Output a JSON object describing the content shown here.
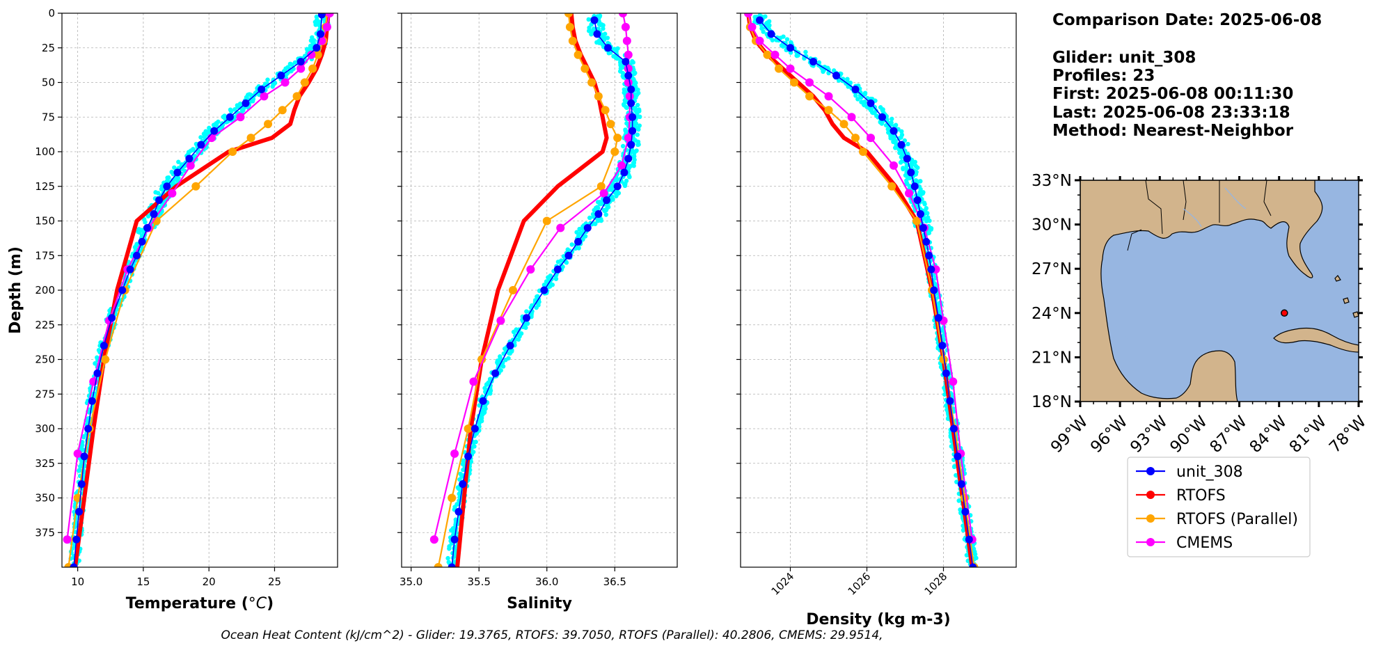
{
  "info": {
    "comparison_date": "Comparison Date: 2025-06-08",
    "glider": "Glider: unit_308",
    "profiles": "Profiles: 23",
    "first": "First: 2025-06-08 00:11:30",
    "last": "Last: 2025-06-08 23:33:18",
    "method": "Method: Nearest-Neighbor"
  },
  "footer": "Ocean Heat Content (kJ/cm^2) - Glider: 19.3765,  RTOFS: 39.7050,  RTOFS (Parallel): 40.2806,  CMEMS: 29.9514,",
  "colors": {
    "glider": "#0000ff",
    "glider_raw": "#00ffff",
    "rtofs": "#ff0000",
    "rtofs_parallel": "#ffa500",
    "cmems": "#ff00ff",
    "land": "#d2b48c",
    "ocean": "#97b6e1",
    "grid": "#b0b0b0"
  },
  "legend": {
    "entries": [
      {
        "label": "unit_308",
        "color": "#0000ff"
      },
      {
        "label": "RTOFS",
        "color": "#ff0000"
      },
      {
        "label": "RTOFS (Parallel)",
        "color": "#ffa500"
      },
      {
        "label": "CMEMS",
        "color": "#ff00ff"
      }
    ]
  },
  "chart_data": [
    {
      "type": "line",
      "xlabel": "Temperature (°C)",
      "ylabel": "Depth (m)",
      "xlim": [
        8.8,
        29.8
      ],
      "ylim": [
        400,
        0
      ],
      "xticks": [
        10,
        15,
        20,
        25
      ],
      "xtick_labels": [
        "10",
        "15",
        "20",
        "25"
      ],
      "yticks": [
        0,
        25,
        50,
        75,
        100,
        125,
        150,
        175,
        200,
        225,
        250,
        275,
        300,
        325,
        350,
        375
      ],
      "ytick_labels": [
        "0",
        "25",
        "50",
        "75",
        "100",
        "125",
        "150",
        "175",
        "200",
        "225",
        "250",
        "275",
        "300",
        "325",
        "350",
        "375"
      ],
      "grid": true,
      "series": [
        {
          "name": "unit_308",
          "depth": [
            1,
            15,
            25,
            35,
            45,
            55,
            65,
            75,
            85,
            95,
            105,
            115,
            125,
            135,
            145,
            155,
            165,
            175,
            185,
            200,
            220,
            240,
            260,
            280,
            300,
            320,
            340,
            360,
            380,
            400
          ],
          "values": [
            28.6,
            28.5,
            28.2,
            27.0,
            25.5,
            24.0,
            22.8,
            21.6,
            20.4,
            19.4,
            18.5,
            17.6,
            16.8,
            16.2,
            15.8,
            15.3,
            14.9,
            14.5,
            14.0,
            13.4,
            12.6,
            12.0,
            11.5,
            11.1,
            10.8,
            10.5,
            10.3,
            10.1,
            9.9,
            9.7
          ]
        },
        {
          "name": "RTOFS",
          "depth": [
            0,
            10,
            20,
            30,
            40,
            50,
            60,
            70,
            80,
            90,
            100,
            125,
            150,
            200,
            250,
            300,
            350,
            400
          ],
          "values": [
            29.1,
            29.0,
            28.9,
            28.6,
            28.2,
            27.6,
            26.9,
            26.5,
            26.2,
            24.8,
            21.5,
            17.5,
            14.5,
            13.0,
            12.0,
            11.2,
            10.5,
            9.8
          ]
        },
        {
          "name": "RTOFS (Parallel)",
          "depth": [
            0,
            10,
            20,
            30,
            40,
            50,
            60,
            70,
            80,
            90,
            100,
            125,
            150,
            200,
            250,
            300,
            350,
            400
          ],
          "values": [
            29.0,
            28.9,
            28.7,
            28.3,
            27.9,
            27.3,
            26.7,
            25.6,
            24.5,
            23.2,
            21.8,
            19.0,
            16.0,
            13.6,
            12.1,
            10.9,
            10.0,
            9.3
          ]
        },
        {
          "name": "CMEMS",
          "depth": [
            0,
            10,
            20,
            30,
            40,
            50,
            60,
            75,
            90,
            110,
            130,
            155,
            185,
            222,
            266,
            318,
            380
          ],
          "values": [
            29.2,
            29.0,
            28.6,
            27.8,
            27.0,
            25.8,
            24.2,
            22.4,
            20.2,
            18.6,
            17.2,
            15.4,
            13.8,
            12.4,
            11.2,
            10.0,
            9.2
          ]
        }
      ]
    },
    {
      "type": "line",
      "xlabel": "Salinity",
      "ylabel": "",
      "xlim": [
        34.93,
        36.96
      ],
      "ylim": [
        400,
        0
      ],
      "xticks": [
        35.0,
        35.5,
        36.0,
        36.5
      ],
      "xtick_labels": [
        "35.0",
        "35.5",
        "36.0",
        "36.5"
      ],
      "grid": true,
      "series": [
        {
          "name": "unit_308",
          "depth": [
            5,
            15,
            25,
            35,
            45,
            55,
            65,
            75,
            85,
            95,
            105,
            115,
            125,
            135,
            145,
            155,
            165,
            175,
            185,
            200,
            220,
            240,
            260,
            280,
            300,
            320,
            340,
            360,
            380,
            400
          ],
          "values": [
            36.35,
            36.37,
            36.45,
            36.58,
            36.6,
            36.62,
            36.62,
            36.63,
            36.63,
            36.62,
            36.6,
            36.57,
            36.52,
            36.44,
            36.38,
            36.3,
            36.23,
            36.16,
            36.08,
            35.98,
            35.85,
            35.73,
            35.62,
            35.53,
            35.47,
            35.42,
            35.38,
            35.35,
            35.32,
            35.3
          ]
        },
        {
          "name": "RTOFS",
          "depth": [
            0,
            10,
            20,
            30,
            40,
            50,
            60,
            70,
            80,
            90,
            100,
            125,
            150,
            200,
            250,
            300,
            350,
            400
          ],
          "values": [
            36.18,
            36.19,
            36.21,
            36.25,
            36.3,
            36.35,
            36.38,
            36.4,
            36.42,
            36.44,
            36.41,
            36.08,
            35.83,
            35.64,
            35.52,
            35.44,
            35.39,
            35.34
          ]
        },
        {
          "name": "RTOFS (Parallel)",
          "depth": [
            0,
            10,
            20,
            30,
            40,
            50,
            60,
            70,
            80,
            90,
            100,
            125,
            150,
            200,
            250,
            300,
            350,
            400
          ],
          "values": [
            36.16,
            36.17,
            36.19,
            36.23,
            36.28,
            36.33,
            36.38,
            36.43,
            36.47,
            36.52,
            36.5,
            36.4,
            36.0,
            35.75,
            35.52,
            35.42,
            35.3,
            35.2
          ]
        },
        {
          "name": "CMEMS",
          "depth": [
            0,
            10,
            20,
            30,
            40,
            50,
            60,
            75,
            90,
            110,
            130,
            155,
            185,
            222,
            266,
            318,
            380
          ],
          "values": [
            36.56,
            36.58,
            36.59,
            36.6,
            36.6,
            36.6,
            36.61,
            36.61,
            36.6,
            36.55,
            36.42,
            36.1,
            35.88,
            35.66,
            35.46,
            35.32,
            35.17
          ]
        }
      ]
    },
    {
      "type": "line",
      "xlabel": "Density (kg m-3)",
      "ylabel": "",
      "xlim": [
        1022.7,
        1029.9
      ],
      "ylim": [
        400,
        0
      ],
      "xticks": [
        1024,
        1026,
        1028
      ],
      "xtick_labels": [
        "1024",
        "1026",
        "1028"
      ],
      "grid": true,
      "series": [
        {
          "name": "unit_308",
          "depth": [
            5,
            15,
            25,
            35,
            45,
            55,
            65,
            75,
            85,
            95,
            105,
            115,
            125,
            135,
            145,
            155,
            165,
            175,
            185,
            200,
            220,
            240,
            260,
            280,
            300,
            320,
            340,
            360,
            380,
            400
          ],
          "values": [
            1023.2,
            1023.5,
            1024.0,
            1024.6,
            1025.2,
            1025.7,
            1026.1,
            1026.4,
            1026.7,
            1026.9,
            1027.05,
            1027.15,
            1027.25,
            1027.32,
            1027.4,
            1027.47,
            1027.55,
            1027.62,
            1027.68,
            1027.75,
            1027.87,
            1027.97,
            1028.07,
            1028.17,
            1028.27,
            1028.37,
            1028.47,
            1028.57,
            1028.67,
            1028.77
          ]
        },
        {
          "name": "RTOFS",
          "depth": [
            0,
            10,
            20,
            30,
            40,
            50,
            60,
            70,
            80,
            90,
            100,
            125,
            150,
            200,
            250,
            300,
            350,
            400
          ],
          "values": [
            1022.9,
            1022.95,
            1023.1,
            1023.4,
            1023.8,
            1024.2,
            1024.6,
            1024.9,
            1025.1,
            1025.4,
            1026.0,
            1026.75,
            1027.3,
            1027.7,
            1028.0,
            1028.25,
            1028.5,
            1028.75
          ]
        },
        {
          "name": "RTOFS (Parallel)",
          "depth": [
            0,
            10,
            20,
            30,
            40,
            50,
            60,
            70,
            80,
            90,
            100,
            125,
            150,
            200,
            250,
            300,
            350,
            400
          ],
          "values": [
            1022.9,
            1022.95,
            1023.1,
            1023.4,
            1023.7,
            1024.1,
            1024.5,
            1025.0,
            1025.4,
            1025.7,
            1025.9,
            1026.65,
            1027.3,
            1027.7,
            1028.0,
            1028.3,
            1028.55,
            1028.8
          ]
        },
        {
          "name": "CMEMS",
          "depth": [
            0,
            10,
            20,
            30,
            40,
            50,
            60,
            75,
            90,
            110,
            130,
            155,
            185,
            222,
            266,
            318,
            380
          ],
          "values": [
            1022.9,
            1023.0,
            1023.2,
            1023.6,
            1024.0,
            1024.5,
            1025.0,
            1025.6,
            1026.1,
            1026.7,
            1027.1,
            1027.5,
            1027.8,
            1028.0,
            1028.25,
            1028.45,
            1028.75
          ]
        }
      ]
    }
  ],
  "map": {
    "lat_ticks": [
      "33°N",
      "30°N",
      "27°N",
      "24°N",
      "21°N",
      "18°N"
    ],
    "lon_ticks": [
      "99°W",
      "96°W",
      "93°W",
      "90°W",
      "87°W",
      "84°W",
      "81°W",
      "78°W"
    ],
    "lat_range": [
      18,
      33
    ],
    "lon_range": [
      -99,
      -78
    ],
    "marker": {
      "lon": -83.6,
      "lat": 24.0,
      "color": "#ff0000"
    }
  }
}
